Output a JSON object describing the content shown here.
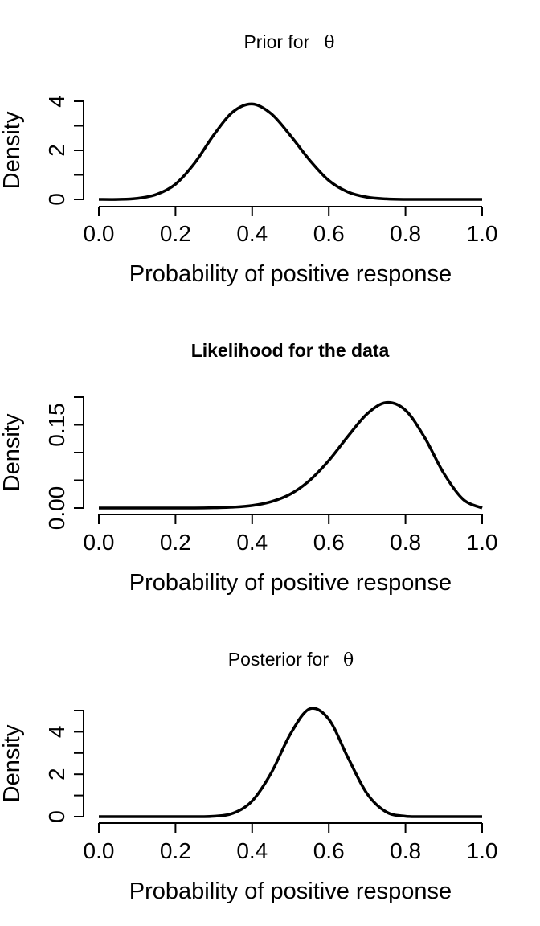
{
  "chart_data": [
    {
      "type": "line",
      "title": "Prior for",
      "title_symbol": "θ",
      "xlabel": "Probability of positive response",
      "ylabel": "Density",
      "xlim": [
        0,
        1
      ],
      "ylim": [
        0,
        4
      ],
      "x_ticks": [
        "0.0",
        "0.2",
        "0.4",
        "0.6",
        "0.8",
        "1.0"
      ],
      "y_ticks": [
        "0",
        "2",
        "4"
      ],
      "y_minor_ticks": [
        1,
        3
      ],
      "grid": false,
      "series": [
        {
          "x": [
            0.0,
            0.05,
            0.1,
            0.15,
            0.2,
            0.25,
            0.3,
            0.35,
            0.4,
            0.45,
            0.5,
            0.55,
            0.6,
            0.65,
            0.7,
            0.75,
            0.8,
            0.85,
            0.9,
            0.95,
            1.0
          ],
          "y": [
            0.0,
            0.0,
            0.04,
            0.2,
            0.62,
            1.48,
            2.63,
            3.57,
            3.89,
            3.49,
            2.6,
            1.6,
            0.77,
            0.3,
            0.09,
            0.02,
            0.0,
            0.0,
            0.0,
            0.0,
            0.0
          ]
        }
      ]
    },
    {
      "type": "line",
      "title": "Likelihood for the data",
      "xlabel": "Probability of positive response",
      "ylabel": "Density",
      "xlim": [
        0,
        1
      ],
      "ylim": [
        0,
        0.2
      ],
      "x_ticks": [
        "0.0",
        "0.2",
        "0.4",
        "0.6",
        "0.8",
        "1.0"
      ],
      "y_ticks": [
        "0.00",
        "0.15"
      ],
      "y_minor_ticks": [
        0.05,
        0.1,
        0.2
      ],
      "grid": false,
      "series": [
        {
          "x": [
            0.0,
            0.05,
            0.1,
            0.15,
            0.2,
            0.25,
            0.3,
            0.35,
            0.4,
            0.45,
            0.5,
            0.55,
            0.6,
            0.65,
            0.7,
            0.75,
            0.8,
            0.85,
            0.9,
            0.95,
            1.0
          ],
          "y": [
            0.0,
            0.0,
            0.0,
            0.0,
            0.0,
            0.0,
            0.0005,
            0.0016,
            0.0045,
            0.0115,
            0.0253,
            0.0498,
            0.0857,
            0.1294,
            0.1699,
            0.1902,
            0.1764,
            0.1271,
            0.0625,
            0.0159,
            0.0
          ]
        }
      ]
    },
    {
      "type": "line",
      "title": "Posterior for",
      "title_symbol": "θ",
      "xlabel": "Probability of positive response",
      "ylabel": "Density",
      "xlim": [
        0,
        1
      ],
      "ylim": [
        0,
        5
      ],
      "x_ticks": [
        "0.0",
        "0.2",
        "0.4",
        "0.6",
        "0.8",
        "1.0"
      ],
      "y_ticks": [
        "0",
        "2",
        "4"
      ],
      "y_minor_ticks": [
        1,
        3,
        5
      ],
      "grid": false,
      "series": [
        {
          "x": [
            0.0,
            0.05,
            0.1,
            0.15,
            0.2,
            0.25,
            0.3,
            0.35,
            0.4,
            0.45,
            0.5,
            0.55,
            0.6,
            0.65,
            0.7,
            0.75,
            0.8,
            0.85,
            0.9,
            0.95,
            1.0
          ],
          "y": [
            0.0,
            0.0,
            0.0,
            0.0,
            0.0,
            0.0,
            0.02,
            0.16,
            0.74,
            2.07,
            3.9,
            5.08,
            4.59,
            2.78,
            1.08,
            0.22,
            0.02,
            0.0,
            0.0,
            0.0,
            0.0
          ]
        }
      ]
    }
  ]
}
